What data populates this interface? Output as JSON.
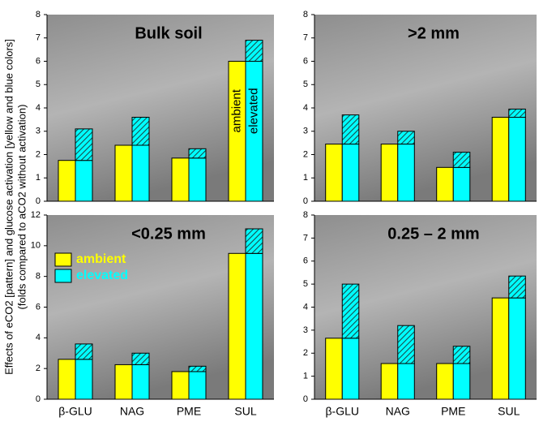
{
  "y_label": [
    "Effects of eCO2 [pattern] and glucose activation [yellow and blue colors]",
    "(folds compared to aCO2 without activation)"
  ],
  "chart_data": [
    {
      "type": "bar",
      "title": "Bulk soil",
      "categories": [
        "β-GLU",
        "NAG",
        "PME",
        "SUL"
      ],
      "ylim": [
        0,
        8
      ],
      "yticks": [
        0,
        1,
        2,
        3,
        4,
        5,
        6,
        7,
        8
      ],
      "bar_labels": [
        "ambient",
        "elevated"
      ],
      "series": [
        {
          "name": "ambient",
          "color": "#ffff00",
          "values": [
            1.75,
            2.4,
            1.85,
            6.0
          ]
        },
        {
          "name": "elevated",
          "color": "#00ffff",
          "values": [
            1.75,
            2.4,
            1.85,
            6.0
          ]
        },
        {
          "pattern": true,
          "color": "#00ffff",
          "values": [
            1.35,
            1.2,
            0.4,
            0.9
          ]
        }
      ]
    },
    {
      "type": "bar",
      "title": ">2 mm",
      "categories": [
        "β-GLU",
        "NAG",
        "PME",
        "SUL"
      ],
      "ylim": [
        0,
        8
      ],
      "yticks": [
        0,
        1,
        2,
        3,
        4,
        5,
        6,
        7,
        8
      ],
      "series": [
        {
          "name": "ambient",
          "color": "#ffff00",
          "values": [
            2.45,
            2.45,
            1.45,
            3.6
          ]
        },
        {
          "name": "elevated",
          "color": "#00ffff",
          "values": [
            2.45,
            2.45,
            1.45,
            3.6
          ]
        },
        {
          "pattern": true,
          "color": "#00ffff",
          "values": [
            1.25,
            0.55,
            0.65,
            0.35
          ]
        }
      ]
    },
    {
      "type": "bar",
      "title": "<0.25 mm",
      "categories": [
        "β-GLU",
        "NAG",
        "PME",
        "SUL"
      ],
      "ylim": [
        0,
        12
      ],
      "yticks": [
        0,
        2,
        4,
        6,
        8,
        10,
        12
      ],
      "legend": "upper left",
      "series": [
        {
          "name": "ambient",
          "color": "#ffff00",
          "values": [
            2.6,
            2.25,
            1.8,
            9.5
          ]
        },
        {
          "name": "elevated",
          "color": "#00ffff",
          "values": [
            2.6,
            2.25,
            1.8,
            9.5
          ]
        },
        {
          "pattern": true,
          "color": "#00ffff",
          "values": [
            1.0,
            0.75,
            0.35,
            1.6
          ]
        }
      ]
    },
    {
      "type": "bar",
      "title": "0.25 – 2 mm",
      "categories": [
        "β-GLU",
        "NAG",
        "PME",
        "SUL"
      ],
      "ylim": [
        0,
        8
      ],
      "yticks": [
        0,
        1,
        2,
        3,
        4,
        5,
        6,
        7,
        8
      ],
      "series": [
        {
          "name": "ambient",
          "color": "#ffff00",
          "values": [
            2.65,
            1.55,
            1.55,
            4.4
          ]
        },
        {
          "name": "elevated",
          "color": "#00ffff",
          "values": [
            2.65,
            1.55,
            1.55,
            4.4
          ]
        },
        {
          "pattern": true,
          "color": "#00ffff",
          "values": [
            2.35,
            1.65,
            0.75,
            0.95
          ]
        }
      ]
    }
  ]
}
